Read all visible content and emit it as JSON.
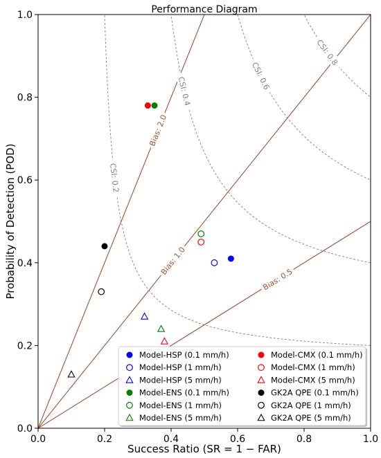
{
  "chart_data": {
    "type": "scatter",
    "title": "Performance Diagram",
    "xlabel": "Success Ratio (SR = 1 − FAR)",
    "ylabel": "Probability of Detection (POD)",
    "xlim": [
      0.0,
      1.0
    ],
    "ylim": [
      0.0,
      1.0
    ],
    "xticks": [
      "0.0",
      "0.2",
      "0.4",
      "0.6",
      "0.8",
      "1.0"
    ],
    "yticks": [
      "0.0",
      "0.2",
      "0.4",
      "0.6",
      "0.8",
      "1.0"
    ],
    "grid": false,
    "legend_position": "bottom-right",
    "csi_lines": [
      {
        "value": 0.2,
        "label": "CSI: 0.2",
        "label_sr": 0.23
      },
      {
        "value": 0.4,
        "label": "CSI: 0.4",
        "label_sr": 0.44
      },
      {
        "value": 0.6,
        "label": "CSI: 0.6",
        "label_sr": 0.67
      },
      {
        "value": 0.8,
        "label": "CSI: 0.8",
        "label_sr": 0.87
      }
    ],
    "bias_lines": [
      {
        "value": 2.0,
        "label": "Bias: 2.0",
        "label_sr": 0.36
      },
      {
        "value": 1.0,
        "label": "Bias: 1.0",
        "label_sr": 0.405
      },
      {
        "value": 0.5,
        "label": "Bias: 0.5",
        "label_sr": 0.72
      }
    ],
    "colors": {
      "hsp": "#0000ff",
      "ens": "#008000",
      "cmx": "#ff0000",
      "qpe": "#000000",
      "bias_line": "#a0522d",
      "csi_line": "#808080"
    },
    "series": [
      {
        "name": "Model-HSP (0.1 mm/h)",
        "color": "#0000ff",
        "marker": "filled-circle",
        "x": 0.58,
        "y": 0.41
      },
      {
        "name": "Model-HSP (1 mm/h)",
        "color": "#0000ff",
        "marker": "open-circle",
        "x": 0.53,
        "y": 0.4
      },
      {
        "name": "Model-HSP (5 mm/h)",
        "color": "#0000ff",
        "marker": "open-triangle",
        "x": 0.32,
        "y": 0.27
      },
      {
        "name": "Model-ENS (0.1 mm/h)",
        "color": "#008000",
        "marker": "filled-circle",
        "x": 0.35,
        "y": 0.78
      },
      {
        "name": "Model-ENS (1 mm/h)",
        "color": "#008000",
        "marker": "open-circle",
        "x": 0.49,
        "y": 0.47
      },
      {
        "name": "Model-ENS (5 mm/h)",
        "color": "#008000",
        "marker": "open-triangle",
        "x": 0.37,
        "y": 0.24
      },
      {
        "name": "Model-CMX (0.1 mm/h)",
        "color": "#ff0000",
        "marker": "filled-circle",
        "x": 0.33,
        "y": 0.78
      },
      {
        "name": "Model-CMX (1 mm/h)",
        "color": "#ff0000",
        "marker": "open-circle",
        "x": 0.49,
        "y": 0.45
      },
      {
        "name": "Model-CMX (5 mm/h)",
        "color": "#ff0000",
        "marker": "open-triangle",
        "x": 0.38,
        "y": 0.21
      },
      {
        "name": "GK2A QPE (0.1 mm/h)",
        "color": "#000000",
        "marker": "filled-circle",
        "x": 0.2,
        "y": 0.44
      },
      {
        "name": "GK2A QPE (1 mm/h)",
        "color": "#000000",
        "marker": "open-circle",
        "x": 0.19,
        "y": 0.33
      },
      {
        "name": "GK2A QPE (5 mm/h)",
        "color": "#000000",
        "marker": "open-triangle",
        "x": 0.1,
        "y": 0.13
      }
    ]
  }
}
